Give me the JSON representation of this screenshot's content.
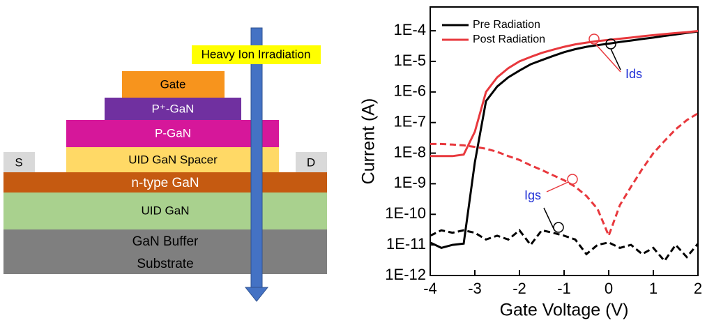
{
  "diagram": {
    "irradiation": "Heavy Ion Irradiation",
    "layers": [
      "Gate",
      "P⁺-GaN",
      "P-GaN",
      "UID GaN Spacer",
      "n-type GaN",
      "UID GaN",
      "GaN Buffer",
      "Substrate"
    ],
    "source": "S",
    "drain": "D"
  },
  "chart_data": {
    "type": "line",
    "x_label": "Gate Voltage (V)",
    "y_label": "Current (A)",
    "log_y": true,
    "xlim": [
      -4,
      2
    ],
    "xticks": [
      -4,
      -3,
      -2,
      -1,
      0,
      1,
      2
    ],
    "ylim": [
      1e-12,
      0.0006
    ],
    "yticks": [
      {
        "value": 1e-12,
        "label": "1E-12"
      },
      {
        "value": 1e-11,
        "label": "1E-11"
      },
      {
        "value": 1e-10,
        "label": "1E-10"
      },
      {
        "value": 1e-09,
        "label": "1E-9"
      },
      {
        "value": 1e-08,
        "label": "1E-8"
      },
      {
        "value": 1e-07,
        "label": "1E-7"
      },
      {
        "value": 1e-06,
        "label": "1E-6"
      },
      {
        "value": 1e-05,
        "label": "1E-5"
      },
      {
        "value": 0.0001,
        "label": "1E-4"
      }
    ],
    "x": [
      -4,
      -3.75,
      -3.5,
      -3.25,
      -3,
      -2.75,
      -2.5,
      -2.25,
      -2,
      -1.75,
      -1.5,
      -1.25,
      -1,
      -0.75,
      -0.5,
      -0.25,
      0,
      0.25,
      0.5,
      0.75,
      1,
      1.25,
      1.5,
      1.75,
      2
    ],
    "legend": "upper left",
    "series": [
      {
        "name": "Pre Radiation",
        "color": "#000000",
        "values": [
          1.2e-11,
          8e-12,
          1e-11,
          1.1e-11,
          5e-09,
          5e-07,
          1.5e-06,
          3e-06,
          5e-06,
          8e-06,
          1.1e-05,
          1.5e-05,
          2e-05,
          2.5e-05,
          3e-05,
          3.4e-05,
          3.8e-05,
          4.3e-05,
          4.8e-05,
          5.4e-05,
          6e-05,
          6.8e-05,
          7.6e-05,
          8.5e-05,
          9.5e-05
        ],
        "igs_values": [
          2e-11,
          3e-11,
          2.5e-11,
          3e-11,
          2.5e-11,
          1.5e-11,
          2e-11,
          1.5e-11,
          3e-11,
          1e-11,
          3e-11,
          2.5e-11,
          2e-11,
          1.5e-11,
          5e-12,
          1e-11,
          1.2e-11,
          8e-12,
          1e-11,
          5e-12,
          8e-12,
          3e-12,
          1e-11,
          4e-12,
          1.1e-11
        ]
      },
      {
        "name": "Post Radiation",
        "color": "#e8383d",
        "values": [
          8e-09,
          8e-09,
          8e-09,
          9e-09,
          5e-08,
          1e-06,
          3e-06,
          6e-06,
          1e-05,
          1.4e-05,
          1.9e-05,
          2.4e-05,
          3e-05,
          3.6e-05,
          4.1e-05,
          4.6e-05,
          5e-05,
          5.5e-05,
          6e-05,
          6.6e-05,
          7.2e-05,
          7.8e-05,
          8.4e-05,
          9e-05,
          9.8e-05
        ],
        "igs_values": [
          2e-08,
          2e-08,
          1.9e-08,
          1.8e-08,
          1.6e-08,
          1.4e-08,
          1.1e-08,
          8e-09,
          6e-09,
          4e-09,
          2.8e-09,
          1.9e-09,
          1.3e-09,
          8e-10,
          4e-10,
          1.5e-10,
          2e-11,
          2e-10,
          8e-10,
          3e-09,
          1e-08,
          2.5e-08,
          6e-08,
          1.2e-07,
          2e-07
        ]
      }
    ],
    "annotations": [
      "Ids",
      "Igs"
    ]
  }
}
